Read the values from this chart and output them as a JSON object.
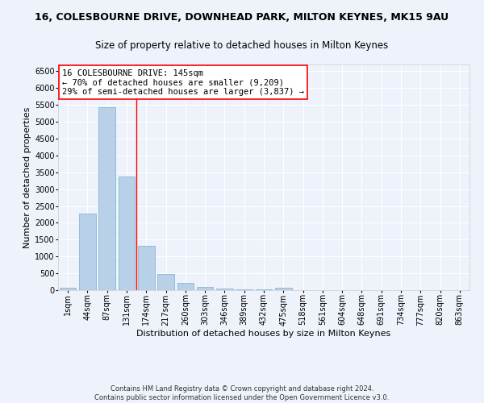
{
  "title1": "16, COLESBOURNE DRIVE, DOWNHEAD PARK, MILTON KEYNES, MK15 9AU",
  "title2": "Size of property relative to detached houses in Milton Keynes",
  "xlabel": "Distribution of detached houses by size in Milton Keynes",
  "ylabel": "Number of detached properties",
  "footer1": "Contains HM Land Registry data © Crown copyright and database right 2024.",
  "footer2": "Contains public sector information licensed under the Open Government Licence v3.0.",
  "annotation_line1": "16 COLESBOURNE DRIVE: 145sqm",
  "annotation_line2": "← 70% of detached houses are smaller (9,209)",
  "annotation_line3": "29% of semi-detached houses are larger (3,837) →",
  "bar_labels": [
    "1sqm",
    "44sqm",
    "87sqm",
    "131sqm",
    "174sqm",
    "217sqm",
    "260sqm",
    "303sqm",
    "346sqm",
    "389sqm",
    "432sqm",
    "475sqm",
    "518sqm",
    "561sqm",
    "604sqm",
    "648sqm",
    "691sqm",
    "734sqm",
    "777sqm",
    "820sqm",
    "863sqm"
  ],
  "bar_values": [
    75,
    2270,
    5430,
    3380,
    1310,
    470,
    210,
    95,
    55,
    30,
    15,
    60,
    0,
    0,
    0,
    0,
    0,
    0,
    0,
    0,
    0
  ],
  "bar_color": "#b8d0e8",
  "bar_edge_color": "#7aaed0",
  "red_line_x": 3.5,
  "ylim": [
    0,
    6700
  ],
  "yticks": [
    0,
    500,
    1000,
    1500,
    2000,
    2500,
    3000,
    3500,
    4000,
    4500,
    5000,
    5500,
    6000,
    6500
  ],
  "bg_color": "#eef2fb",
  "grid_color": "#ffffff",
  "title_fontsize": 9.0,
  "subtitle_fontsize": 8.5,
  "axis_label_fontsize": 8.0,
  "tick_fontsize": 7.0,
  "footer_fontsize": 6.0,
  "annot_fontsize": 7.5
}
